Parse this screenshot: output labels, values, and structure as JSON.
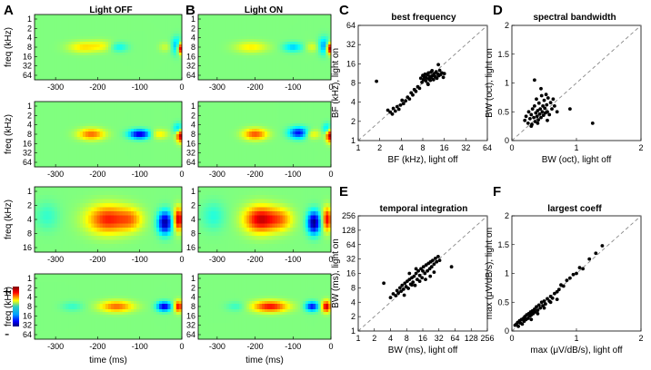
{
  "panels": {
    "A": {
      "letter": "A",
      "title": "Light OFF"
    },
    "B": {
      "letter": "B",
      "title": "Light ON"
    },
    "C": {
      "letter": "C",
      "title": "best frequency",
      "xlabel": "BF (kHz), light off",
      "ylabel": "BF (kHz), light on"
    },
    "D": {
      "letter": "D",
      "title": "spectral bandwidth",
      "xlabel": "BW (oct), light off",
      "ylabel": "BW (oct), light on"
    },
    "E": {
      "letter": "E",
      "title": "temporal integration",
      "xlabel": "BW (ms), light off",
      "ylabel": "BW (ms), light on"
    },
    "F": {
      "letter": "F",
      "title": "largest coeff",
      "xlabel": "max (μV/dB/s), light off",
      "ylabel": "max (μV/dB/s), light on"
    }
  },
  "heatmap": {
    "ylabel": "freq (kHz)",
    "xlabel": "time (ms)",
    "xticks": [
      "-300",
      "-200",
      "-100",
      "0"
    ],
    "yticks_full": [
      "1",
      "2",
      "4",
      "8",
      "16",
      "32",
      "64"
    ],
    "yticks_row3": [
      "1",
      "2",
      "4",
      "8",
      "16"
    ],
    "colorbar_plus": "+",
    "colorbar_minus": "-"
  },
  "chart_data": [
    {
      "type": "heatmap",
      "title": "Light OFF",
      "note": "4 rows of spectro-temporal receptive fields, time from -350 to 0 ms, frequency 1-64 kHz; strongest weights near 0 ms around 8 kHz"
    },
    {
      "type": "heatmap",
      "title": "Light ON",
      "note": "4 rows of spectro-temporal receptive fields matching the Light OFF rows"
    },
    {
      "type": "scatter",
      "title": "best frequency",
      "xlabel": "BF (kHz), light off",
      "ylabel": "BF (kHz), light on",
      "scale": "log2",
      "xlim": [
        1,
        64
      ],
      "ylim": [
        1,
        64
      ],
      "xticks": [
        "1",
        "2",
        "4",
        "8",
        "16",
        "32",
        "64"
      ],
      "yticks": [
        "1",
        "2",
        "4",
        "8",
        "16",
        "32",
        "64"
      ],
      "diagonal": "dashed",
      "points": [
        [
          1.8,
          8.5
        ],
        [
          2.6,
          3.0
        ],
        [
          2.8,
          2.8
        ],
        [
          3.0,
          2.6
        ],
        [
          3.1,
          3.2
        ],
        [
          3.3,
          2.9
        ],
        [
          3.5,
          3.4
        ],
        [
          3.7,
          3.1
        ],
        [
          3.9,
          3.6
        ],
        [
          4.1,
          4.3
        ],
        [
          4.3,
          3.8
        ],
        [
          4.6,
          4.2
        ],
        [
          4.9,
          4.8
        ],
        [
          5.2,
          4.5
        ],
        [
          5.5,
          5.6
        ],
        [
          5.8,
          5.2
        ],
        [
          6.1,
          6.3
        ],
        [
          6.4,
          5.9
        ],
        [
          6.8,
          7.0
        ],
        [
          7.2,
          6.6
        ],
        [
          7.5,
          9.5
        ],
        [
          7.8,
          8.2
        ],
        [
          8.0,
          10.5
        ],
        [
          8.2,
          9.0
        ],
        [
          8.4,
          10.0
        ],
        [
          8.6,
          11.0
        ],
        [
          8.8,
          8.6
        ],
        [
          9.0,
          9.6
        ],
        [
          9.2,
          10.8
        ],
        [
          9.4,
          7.8
        ],
        [
          9.6,
          11.5
        ],
        [
          9.8,
          9.2
        ],
        [
          10.0,
          10.2
        ],
        [
          10.2,
          8.8
        ],
        [
          10.4,
          11.8
        ],
        [
          10.6,
          9.8
        ],
        [
          10.8,
          12.5
        ],
        [
          11.0,
          10.5
        ],
        [
          11.3,
          9.0
        ],
        [
          11.6,
          11.2
        ],
        [
          12.0,
          10.0
        ],
        [
          12.3,
          12.0
        ],
        [
          12.6,
          9.5
        ],
        [
          13.0,
          11.0
        ],
        [
          13.4,
          10.4
        ],
        [
          13.8,
          12.6
        ],
        [
          14.2,
          10.8
        ],
        [
          14.8,
          11.5
        ],
        [
          15.5,
          9.8
        ],
        [
          16.0,
          11.2
        ],
        [
          13.2,
          15.5
        ],
        [
          9.5,
          7.6
        ]
      ]
    },
    {
      "type": "scatter",
      "title": "spectral bandwidth",
      "xlabel": "BW (oct), light off",
      "ylabel": "BW (oct), light on",
      "xlim": [
        0,
        2
      ],
      "ylim": [
        0,
        2
      ],
      "xticks": [
        "0",
        "1",
        "2"
      ],
      "yticks": [
        "0",
        "0.5",
        "1",
        "1.5",
        "2"
      ],
      "diagonal": "dashed",
      "points": [
        [
          0.2,
          0.35
        ],
        [
          0.22,
          0.42
        ],
        [
          0.25,
          0.3
        ],
        [
          0.26,
          0.5
        ],
        [
          0.28,
          0.38
        ],
        [
          0.3,
          0.45
        ],
        [
          0.31,
          0.28
        ],
        [
          0.32,
          0.55
        ],
        [
          0.34,
          0.4
        ],
        [
          0.35,
          0.6
        ],
        [
          0.36,
          0.33
        ],
        [
          0.37,
          0.48
        ],
        [
          0.38,
          0.72
        ],
        [
          0.39,
          0.42
        ],
        [
          0.4,
          0.52
        ],
        [
          0.41,
          0.36
        ],
        [
          0.42,
          0.65
        ],
        [
          0.43,
          0.46
        ],
        [
          0.44,
          0.55
        ],
        [
          0.45,
          0.4
        ],
        [
          0.46,
          0.78
        ],
        [
          0.47,
          0.5
        ],
        [
          0.48,
          0.6
        ],
        [
          0.49,
          0.44
        ],
        [
          0.5,
          0.7
        ],
        [
          0.51,
          0.56
        ],
        [
          0.52,
          0.48
        ],
        [
          0.53,
          0.8
        ],
        [
          0.54,
          0.62
        ],
        [
          0.55,
          0.5
        ],
        [
          0.56,
          0.74
        ],
        [
          0.58,
          0.45
        ],
        [
          0.6,
          0.66
        ],
        [
          0.62,
          0.55
        ],
        [
          0.64,
          0.72
        ],
        [
          0.66,
          0.6
        ],
        [
          0.7,
          0.5
        ],
        [
          0.35,
          1.05
        ],
        [
          0.45,
          0.9
        ],
        [
          0.9,
          0.55
        ],
        [
          1.25,
          0.3
        ],
        [
          0.3,
          0.25
        ],
        [
          0.4,
          0.3
        ],
        [
          0.55,
          0.35
        ]
      ]
    },
    {
      "type": "scatter",
      "title": "temporal integration",
      "xlabel": "BW (ms), light off",
      "ylabel": "BW (ms), light on",
      "scale": "log2",
      "xlim": [
        1,
        256
      ],
      "ylim": [
        1,
        256
      ],
      "xticks": [
        "1",
        "2",
        "4",
        "8",
        "16",
        "32",
        "64",
        "128",
        "256"
      ],
      "yticks": [
        "1",
        "2",
        "4",
        "8",
        "16",
        "32",
        "64",
        "128",
        "256"
      ],
      "diagonal": "dashed",
      "points": [
        [
          3,
          10
        ],
        [
          4,
          5
        ],
        [
          4.5,
          6
        ],
        [
          5,
          5.5
        ],
        [
          5.3,
          7
        ],
        [
          5.6,
          6.2
        ],
        [
          6,
          8
        ],
        [
          6.3,
          6.8
        ],
        [
          6.6,
          9
        ],
        [
          7,
          7.5
        ],
        [
          7.4,
          10
        ],
        [
          7.8,
          8.5
        ],
        [
          8.2,
          11
        ],
        [
          8.6,
          7.8
        ],
        [
          9,
          12
        ],
        [
          9.5,
          9.5
        ],
        [
          10,
          13
        ],
        [
          10.5,
          10.5
        ],
        [
          11,
          14
        ],
        [
          11.5,
          9
        ],
        [
          12,
          16
        ],
        [
          12.6,
          12
        ],
        [
          13.2,
          18
        ],
        [
          14,
          14.5
        ],
        [
          14.8,
          20
        ],
        [
          15.5,
          13
        ],
        [
          16.5,
          22
        ],
        [
          17.5,
          16
        ],
        [
          18.5,
          24
        ],
        [
          19.5,
          18
        ],
        [
          20.5,
          26
        ],
        [
          21.5,
          20
        ],
        [
          22.5,
          28
        ],
        [
          23.5,
          22
        ],
        [
          24.5,
          30
        ],
        [
          26,
          25
        ],
        [
          27.5,
          33
        ],
        [
          29,
          28
        ],
        [
          31,
          36
        ],
        [
          33,
          30
        ],
        [
          18,
          12
        ],
        [
          22,
          14
        ],
        [
          26,
          17
        ],
        [
          12,
          20
        ],
        [
          9,
          16
        ],
        [
          55,
          22
        ],
        [
          7.2,
          5.6
        ],
        [
          10,
          9.2
        ],
        [
          14,
          11
        ],
        [
          16,
          18
        ]
      ]
    },
    {
      "type": "scatter",
      "title": "largest coeff",
      "xlabel": "max (μV/dB/s), light off",
      "ylabel": "max (μV/dB/s), light on",
      "xlim": [
        0,
        2
      ],
      "ylim": [
        0,
        2
      ],
      "xticks": [
        "0",
        "1",
        "2"
      ],
      "yticks": [
        "0",
        "0.5",
        "1",
        "1.5",
        "2"
      ],
      "diagonal": "dashed",
      "points": [
        [
          0.05,
          0.1
        ],
        [
          0.07,
          0.12
        ],
        [
          0.09,
          0.15
        ],
        [
          0.1,
          0.08
        ],
        [
          0.12,
          0.18
        ],
        [
          0.13,
          0.14
        ],
        [
          0.15,
          0.2
        ],
        [
          0.16,
          0.12
        ],
        [
          0.18,
          0.22
        ],
        [
          0.19,
          0.17
        ],
        [
          0.2,
          0.25
        ],
        [
          0.22,
          0.2
        ],
        [
          0.23,
          0.28
        ],
        [
          0.25,
          0.22
        ],
        [
          0.26,
          0.3
        ],
        [
          0.28,
          0.26
        ],
        [
          0.29,
          0.33
        ],
        [
          0.3,
          0.28
        ],
        [
          0.32,
          0.35
        ],
        [
          0.33,
          0.3
        ],
        [
          0.35,
          0.38
        ],
        [
          0.36,
          0.33
        ],
        [
          0.38,
          0.42
        ],
        [
          0.4,
          0.36
        ],
        [
          0.42,
          0.45
        ],
        [
          0.44,
          0.4
        ],
        [
          0.46,
          0.5
        ],
        [
          0.48,
          0.44
        ],
        [
          0.5,
          0.52
        ],
        [
          0.52,
          0.47
        ],
        [
          0.55,
          0.56
        ],
        [
          0.58,
          0.52
        ],
        [
          0.6,
          0.6
        ],
        [
          0.63,
          0.57
        ],
        [
          0.66,
          0.65
        ],
        [
          0.7,
          0.68
        ],
        [
          0.73,
          0.72
        ],
        [
          0.76,
          0.8
        ],
        [
          0.8,
          0.78
        ],
        [
          0.85,
          0.88
        ],
        [
          0.9,
          0.92
        ],
        [
          0.95,
          0.98
        ],
        [
          1.0,
          1.0
        ],
        [
          1.05,
          1.1
        ],
        [
          1.1,
          1.08
        ],
        [
          1.2,
          1.25
        ],
        [
          1.3,
          1.35
        ],
        [
          1.4,
          1.48
        ],
        [
          0.5,
          0.4
        ],
        [
          0.6,
          0.5
        ],
        [
          0.7,
          0.55
        ],
        [
          0.3,
          0.2
        ],
        [
          0.4,
          0.3
        ]
      ]
    }
  ]
}
